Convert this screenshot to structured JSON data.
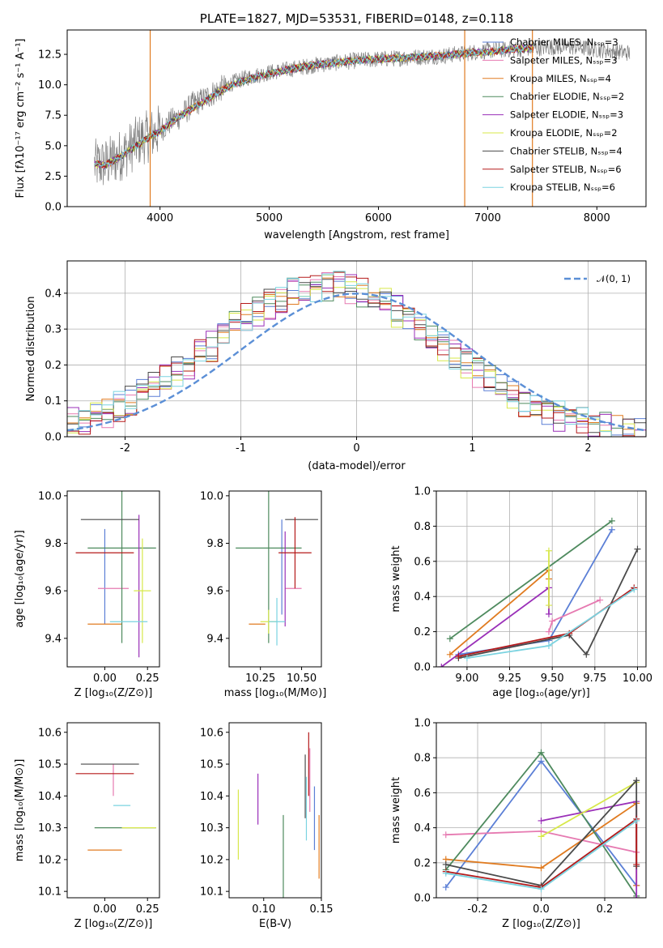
{
  "chart_data": [
    {
      "id": "spectrum",
      "type": "line",
      "title": "PLATE=1827, MJD=53531, FIBERID=0148, z=0.118",
      "xlabel": "wavelength [Angstrom, rest frame]",
      "ylabel": "Flux [fλ10⁻¹⁷ erg cm⁻² s⁻¹ A⁻¹]",
      "xlim": [
        3150,
        8450
      ],
      "ylim": [
        0,
        14.5
      ],
      "xticks": [
        4000,
        5000,
        6000,
        7000,
        8000
      ],
      "yticks": [
        0.0,
        2.5,
        5.0,
        7.5,
        10.0,
        12.5
      ],
      "legend_position": "upper right",
      "data_series": {
        "name": "data",
        "color": "#808080",
        "x": [
          3400,
          3500,
          3600,
          3700,
          3800,
          3900,
          4000,
          4100,
          4200,
          4300,
          4400,
          4500,
          4600,
          4700,
          4800,
          4900,
          5000,
          5200,
          5400,
          5600,
          5800,
          6000,
          6200,
          6400,
          6600,
          6800,
          7000,
          7200,
          7400,
          7600,
          7800,
          8000,
          8200,
          8300
        ],
        "y": [
          3.4,
          3.5,
          4.0,
          4.6,
          5.4,
          5.8,
          6.3,
          7.0,
          7.5,
          8.4,
          8.8,
          9.4,
          9.9,
          10.3,
          10.6,
          10.8,
          11.0,
          11.3,
          11.6,
          11.8,
          12.0,
          12.1,
          12.2,
          12.3,
          12.4,
          12.6,
          12.8,
          12.9,
          13.0,
          13.1,
          13.1,
          12.9,
          12.7,
          12.6
        ]
      },
      "model_series": [
        {
          "name": "Chabrier MILES, N_SSP=3",
          "color": "#5b7fd6"
        },
        {
          "name": "Salpeter MILES, N_SSP=3",
          "color": "#e67ab1"
        },
        {
          "name": "Kroupa MILES, N_SSP=4",
          "color": "#e07b20"
        },
        {
          "name": "Chabrier ELODIE, N_SSP=2",
          "color": "#4e8a5e"
        },
        {
          "name": "Salpeter ELODIE, N_SSP=3",
          "color": "#9a2fb8"
        },
        {
          "name": "Kroupa ELODIE, N_SSP=2",
          "color": "#d7e84a"
        },
        {
          "name": "Chabrier STELIB, N_SSP=4",
          "color": "#4a4a4a"
        },
        {
          "name": "Salpeter STELIB, N_SSP=6",
          "color": "#b51a1a"
        },
        {
          "name": "Kroupa STELIB, N_SSP=6",
          "color": "#7ad3e0"
        }
      ],
      "model_x": [
        3400,
        3500,
        3600,
        3700,
        3800,
        3900,
        4000,
        4100,
        4200,
        4300,
        4400,
        4500,
        4600,
        4700,
        4800,
        4900,
        5000,
        5200,
        5400,
        5600,
        5800,
        6000,
        6200,
        6400,
        6600,
        6800,
        7000,
        7200,
        7400,
        7600,
        7800,
        8000,
        8200,
        8300
      ],
      "model_y": [
        3.5,
        3.4,
        3.9,
        4.5,
        5.1,
        5.7,
        6.2,
        6.9,
        7.5,
        8.1,
        8.6,
        9.2,
        9.7,
        10.1,
        10.4,
        10.7,
        10.9,
        11.3,
        11.6,
        11.8,
        12.0,
        12.1,
        12.2,
        12.3,
        12.4,
        12.6,
        12.7,
        12.9,
        13.0,
        13.1,
        13.2,
        13.0,
        12.8,
        12.7
      ],
      "vertical_lines": [
        {
          "x": 3910,
          "color": "#e07b20"
        },
        {
          "x": 6790,
          "color": "#e07b20"
        },
        {
          "x": 7410,
          "color": "#e07b20"
        }
      ]
    },
    {
      "id": "residuals",
      "type": "histogram",
      "xlabel": "(data-model)/error",
      "ylabel": "Normed distribution",
      "xlim": [
        -2.5,
        2.5
      ],
      "ylim": [
        0,
        0.49
      ],
      "xticks": [
        -2,
        -1,
        0,
        1,
        2
      ],
      "yticks": [
        0.0,
        0.1,
        0.2,
        0.3,
        0.4
      ],
      "legend": "𝒩(0, 1)",
      "normal_curve": {
        "mean": 0,
        "sigma": 1,
        "color": "#5b8fd6"
      },
      "bin_width": 0.1
    },
    {
      "id": "age_vs_Z",
      "type": "errorbar",
      "xlabel": "Z [log₁₀(Z/Z⊙)]",
      "ylabel": "age  [log₁₀(age/yr)]",
      "xlim": [
        -0.22,
        0.32
      ],
      "ylim": [
        9.28,
        10.02
      ],
      "xticks": [
        0.0,
        0.25
      ],
      "yticks": [
        9.4,
        9.6,
        9.8,
        10.0
      ],
      "points": [
        {
          "x": 0.0,
          "xerr": 0.0,
          "y": 9.66,
          "yerr": 0.2,
          "color": "#5b7fd6"
        },
        {
          "x": 0.05,
          "xerr": 0.09,
          "y": 9.61,
          "yerr": 0.0,
          "color": "#e67ab1"
        },
        {
          "x": 0.0,
          "xerr": 0.1,
          "y": 9.46,
          "yerr": 0.0,
          "color": "#e07b20"
        },
        {
          "x": 0.1,
          "xerr": 0.2,
          "y": 9.78,
          "yerr": 0.4,
          "color": "#4e8a5e"
        },
        {
          "x": 0.2,
          "xerr": 0.0,
          "y": 9.62,
          "yerr": 0.3,
          "color": "#9a2fb8"
        },
        {
          "x": 0.22,
          "xerr": 0.05,
          "y": 9.6,
          "yerr": 0.22,
          "color": "#d7e84a"
        },
        {
          "x": 0.03,
          "xerr": 0.17,
          "y": 9.9,
          "yerr": 0.0,
          "color": "#4a4a4a"
        },
        {
          "x": 0.0,
          "xerr": 0.17,
          "y": 9.76,
          "yerr": 0.0,
          "color": "#b51a1a"
        },
        {
          "x": 0.14,
          "xerr": 0.11,
          "y": 9.47,
          "yerr": 0.0,
          "color": "#7ad3e0"
        }
      ]
    },
    {
      "id": "age_vs_mass",
      "type": "errorbar",
      "xlabel": "mass [log₁₀(M/M⊙)]",
      "xlim": [
        10.06,
        10.62
      ],
      "ylim": [
        9.28,
        10.02
      ],
      "xticks": [
        10.25,
        10.5
      ],
      "yticks": [
        9.4,
        9.6,
        9.8,
        10.0
      ],
      "points": [
        {
          "x": 10.38,
          "xerr": 0.0,
          "y": 9.7,
          "yerr": 0.2,
          "color": "#5b7fd6"
        },
        {
          "x": 10.45,
          "xerr": 0.05,
          "y": 9.61,
          "yerr": 0.0,
          "color": "#e67ab1"
        },
        {
          "x": 10.23,
          "xerr": 0.05,
          "y": 9.46,
          "yerr": 0.0,
          "color": "#e07b20"
        },
        {
          "x": 10.3,
          "xerr": 0.2,
          "y": 9.78,
          "yerr": 0.4,
          "color": "#4e8a5e"
        },
        {
          "x": 10.4,
          "xerr": 0.0,
          "y": 9.65,
          "yerr": 0.2,
          "color": "#9a2fb8"
        },
        {
          "x": 10.3,
          "xerr": 0.05,
          "y": 9.47,
          "yerr": 0.05,
          "color": "#d7e84a"
        },
        {
          "x": 10.5,
          "xerr": 0.1,
          "y": 9.9,
          "yerr": 0.0,
          "color": "#4a4a4a"
        },
        {
          "x": 10.46,
          "xerr": 0.1,
          "y": 9.76,
          "yerr": 0.15,
          "color": "#b51a1a"
        },
        {
          "x": 10.35,
          "xerr": 0.05,
          "y": 9.47,
          "yerr": 0.1,
          "color": "#7ad3e0"
        }
      ]
    },
    {
      "id": "mass_weight_vs_age",
      "type": "line",
      "xlabel": "age  [log₁₀(age/yr)]",
      "ylabel": "mass weight",
      "xlim": [
        8.82,
        10.05
      ],
      "ylim": [
        0,
        1.0
      ],
      "xticks": [
        9.0,
        9.25,
        9.5,
        9.75,
        10.0
      ],
      "yticks": [
        0.0,
        0.2,
        0.4,
        0.6,
        0.8,
        1.0
      ],
      "series": [
        {
          "color": "#5b7fd6",
          "x": [
            8.95,
            9.48,
            9.85
          ],
          "y": [
            0.07,
            0.15,
            0.78
          ]
        },
        {
          "color": "#e67ab1",
          "x": [
            9.48,
            9.5,
            9.78
          ],
          "y": [
            0.2,
            0.26,
            0.38
          ]
        },
        {
          "color": "#e07b20",
          "x": [
            8.9,
            9.48,
            9.48
          ],
          "y": [
            0.07,
            0.55,
            0.5
          ]
        },
        {
          "color": "#4e8a5e",
          "x": [
            8.9,
            9.85
          ],
          "y": [
            0.16,
            0.83
          ]
        },
        {
          "color": "#9a2fb8",
          "x": [
            8.85,
            9.48,
            9.48
          ],
          "y": [
            0.0,
            0.45,
            0.3
          ]
        },
        {
          "color": "#d7e84a",
          "x": [
            9.48,
            9.48
          ],
          "y": [
            0.35,
            0.66
          ]
        },
        {
          "color": "#4a4a4a",
          "x": [
            8.95,
            9.6,
            9.7,
            10.0
          ],
          "y": [
            0.05,
            0.18,
            0.07,
            0.67
          ]
        },
        {
          "color": "#b51a1a",
          "x": [
            8.95,
            9.6,
            9.98
          ],
          "y": [
            0.06,
            0.19,
            0.45
          ]
        },
        {
          "color": "#7ad3e0",
          "x": [
            9.0,
            9.48,
            9.98
          ],
          "y": [
            0.05,
            0.12,
            0.44
          ]
        }
      ]
    },
    {
      "id": "mass_vs_Z",
      "type": "errorbar",
      "xlabel": "Z [log₁₀(Z/Z⊙)]",
      "ylabel": "mass [log₁₀(M/M⊙)]",
      "xlim": [
        -0.22,
        0.32
      ],
      "ylim": [
        10.08,
        10.63
      ],
      "xticks": [
        0.0,
        0.25
      ],
      "yticks": [
        10.1,
        10.2,
        10.3,
        10.4,
        10.5,
        10.6
      ],
      "points": [
        {
          "x": 0.0,
          "xerr": 0.0,
          "y": 10.38,
          "yerr": 0.0,
          "color": "#5b7fd6"
        },
        {
          "x": 0.05,
          "xerr": 0.0,
          "y": 10.45,
          "yerr": 0.05,
          "color": "#e67ab1"
        },
        {
          "x": 0.0,
          "xerr": 0.1,
          "y": 10.23,
          "yerr": 0.0,
          "color": "#e07b20"
        },
        {
          "x": 0.12,
          "xerr": 0.18,
          "y": 10.3,
          "yerr": 0.0,
          "color": "#4e8a5e"
        },
        {
          "x": 0.2,
          "xerr": 0.0,
          "y": 10.41,
          "yerr": 0.0,
          "color": "#9a2fb8"
        },
        {
          "x": 0.2,
          "xerr": 0.1,
          "y": 10.3,
          "yerr": 0.0,
          "color": "#d7e84a"
        },
        {
          "x": 0.03,
          "xerr": 0.17,
          "y": 10.5,
          "yerr": 0.0,
          "color": "#4a4a4a"
        },
        {
          "x": 0.0,
          "xerr": 0.17,
          "y": 10.47,
          "yerr": 0.0,
          "color": "#b51a1a"
        },
        {
          "x": 0.1,
          "xerr": 0.05,
          "y": 10.37,
          "yerr": 0.0,
          "color": "#7ad3e0"
        }
      ]
    },
    {
      "id": "mass_vs_ebv",
      "type": "errorbar",
      "xlabel": "E(B-V)",
      "xlim": [
        0.07,
        0.15
      ],
      "ylim": [
        10.08,
        10.63
      ],
      "xticks": [
        0.1,
        0.15
      ],
      "yticks": [
        10.1,
        10.2,
        10.3,
        10.4,
        10.5,
        10.6
      ],
      "points": [
        {
          "x": 0.144,
          "xerr": 0,
          "y": 10.33,
          "yerr": 0.1,
          "color": "#5b7fd6"
        },
        {
          "x": 0.14,
          "xerr": 0,
          "y": 10.45,
          "yerr": 0.1,
          "color": "#e67ab1"
        },
        {
          "x": 0.148,
          "xerr": 0,
          "y": 10.24,
          "yerr": 0.1,
          "color": "#e07b20"
        },
        {
          "x": 0.117,
          "xerr": 0,
          "y": 10.2,
          "yerr": 0.14,
          "color": "#4e8a5e"
        },
        {
          "x": 0.095,
          "xerr": 0,
          "y": 10.39,
          "yerr": 0.08,
          "color": "#9a2fb8"
        },
        {
          "x": 0.078,
          "xerr": 0,
          "y": 10.31,
          "yerr": 0.11,
          "color": "#d7e84a"
        },
        {
          "x": 0.136,
          "xerr": 0,
          "y": 10.43,
          "yerr": 0.1,
          "color": "#4a4a4a"
        },
        {
          "x": 0.139,
          "xerr": 0,
          "y": 10.5,
          "yerr": 0.1,
          "color": "#b51a1a"
        },
        {
          "x": 0.137,
          "xerr": 0,
          "y": 10.36,
          "yerr": 0.1,
          "color": "#7ad3e0"
        }
      ]
    },
    {
      "id": "mass_weight_vs_Z",
      "type": "line",
      "xlabel": "Z [log₁₀(Z/Z⊙)]",
      "ylabel": "mass weight",
      "xlim": [
        -0.33,
        0.33
      ],
      "ylim": [
        0,
        1.0
      ],
      "xticks": [
        -0.2,
        0.0,
        0.2
      ],
      "yticks": [
        0.0,
        0.2,
        0.4,
        0.6,
        0.8,
        1.0
      ],
      "series": [
        {
          "color": "#5b7fd6",
          "x": [
            -0.3,
            0.0,
            0.3
          ],
          "y": [
            0.06,
            0.78,
            0.07
          ]
        },
        {
          "color": "#e67ab1",
          "x": [
            -0.3,
            0.0,
            0.3
          ],
          "y": [
            0.36,
            0.38,
            0.26
          ]
        },
        {
          "color": "#e07b20",
          "x": [
            -0.3,
            0.0,
            0.3,
            0.3
          ],
          "y": [
            0.22,
            0.17,
            0.54,
            0.07
          ]
        },
        {
          "color": "#4e8a5e",
          "x": [
            -0.3,
            0.0,
            0.3
          ],
          "y": [
            0.16,
            0.83,
            0.01
          ]
        },
        {
          "color": "#9a2fb8",
          "x": [
            0.0,
            0.3,
            0.3
          ],
          "y": [
            0.44,
            0.55,
            0.0
          ]
        },
        {
          "color": "#d7e84a",
          "x": [
            0.0,
            0.3
          ],
          "y": [
            0.35,
            0.66
          ]
        },
        {
          "color": "#4a4a4a",
          "x": [
            -0.3,
            0.0,
            0.3,
            0.3
          ],
          "y": [
            0.19,
            0.07,
            0.67,
            0.18
          ]
        },
        {
          "color": "#b51a1a",
          "x": [
            -0.3,
            0.0,
            0.3,
            0.3
          ],
          "y": [
            0.15,
            0.06,
            0.45,
            0.19
          ]
        },
        {
          "color": "#7ad3e0",
          "x": [
            -0.3,
            0.0,
            0.3
          ],
          "y": [
            0.14,
            0.05,
            0.44
          ]
        }
      ]
    }
  ]
}
